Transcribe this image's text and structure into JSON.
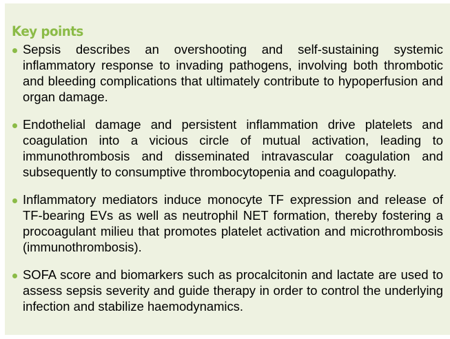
{
  "box": {
    "heading": "Key points",
    "colors": {
      "background": "#eef2e1",
      "heading": "#8bbb47",
      "bullet": "#8bbb47",
      "text": "#000000"
    },
    "points": [
      {
        "text": "Sepsis describes an overshooting and self-sustaining systemic inflammatory response to invading pathogens, involving both thrombotic and bleeding complications that ultimately contribute to hypoperfusion and organ damage."
      },
      {
        "text": "Endothelial damage and persistent inflammation drive platelets and coagulation into a vicious circle of mutual activation, leading to immunothrombosis and disseminated intravascular coagulation and subsequently to consumptive thrombocytopenia and coagulopathy."
      },
      {
        "text": "Inflammatory mediators induce monocyte TF expression and release of TF-bearing EVs as well as neutrophil NET formation, thereby fostering a procoagulant milieu that promotes platelet activation and microthrombosis (immunothrombosis)."
      },
      {
        "text": "SOFA score and biomarkers such as procalcitonin and lactate are used to assess sepsis severity and guide therapy in order to control the underlying infection and stabilize haemodynamics."
      }
    ]
  }
}
